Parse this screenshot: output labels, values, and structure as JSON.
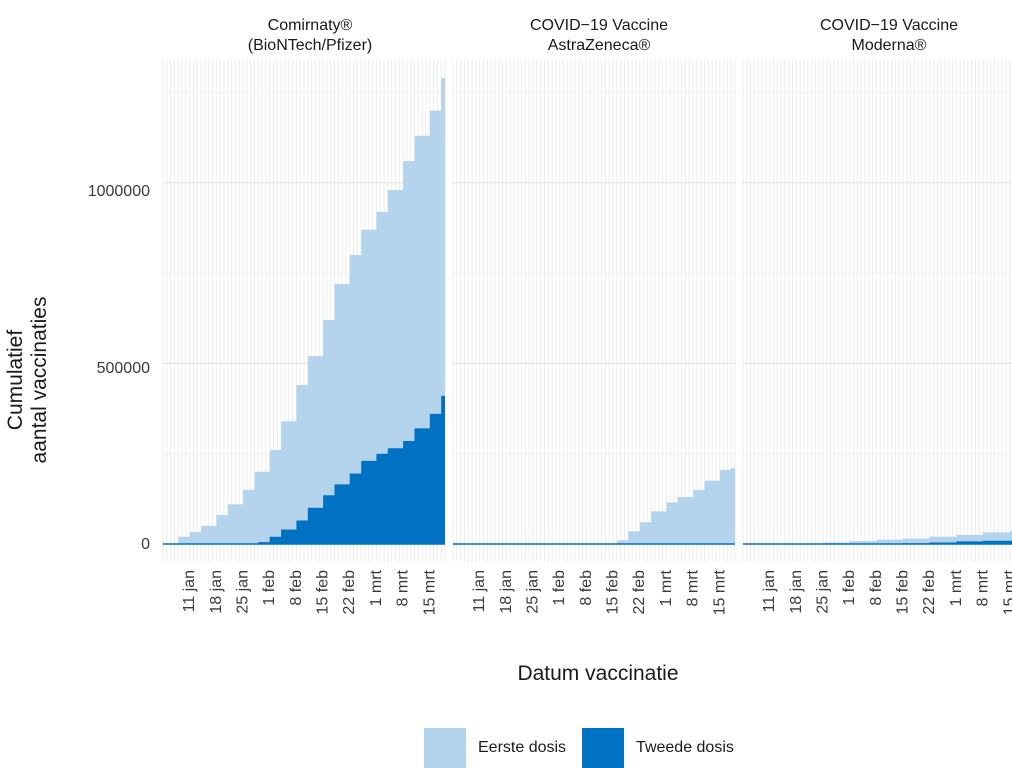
{
  "chart_data": {
    "type": "area",
    "ylabel": "Cumulatief\naantal vaccinaties",
    "xlabel": "Datum vaccinatie",
    "ylim": [
      -50000,
      1340000
    ],
    "yticks": [
      0,
      500000,
      1000000
    ],
    "ytick_labels": [
      "0",
      "500000",
      "1000000"
    ],
    "xlim": [
      "2021-01-04",
      "2021-03-19"
    ],
    "xticks": [
      "2021-01-11",
      "2021-01-18",
      "2021-01-25",
      "2021-02-01",
      "2021-02-08",
      "2021-02-15",
      "2021-02-22",
      "2021-03-01",
      "2021-03-08",
      "2021-03-15"
    ],
    "xtick_labels": [
      "11 jan",
      "18 jan",
      "25 jan",
      "1 feb",
      "8 feb",
      "15 feb",
      "22 feb",
      "1 mrt",
      "8 mrt",
      "15 mrt"
    ],
    "legend_position": "bottom",
    "colors": {
      "eerste": "#b3d4ec",
      "tweede": "#0072c3"
    },
    "legend": [
      {
        "label": "Eerste dosis",
        "color": "#b3d4ec"
      },
      {
        "label": "Tweede dosis",
        "color": "#0072c3"
      }
    ],
    "panels": [
      {
        "title_line1": "Comirnaty®",
        "title_line2": "(BioNTech/Pfizer)",
        "series": [
          {
            "name": "Eerste dosis",
            "points": [
              [
                "2021-01-06",
                0
              ],
              [
                "2021-01-08",
                20000
              ],
              [
                "2021-01-11",
                33000
              ],
              [
                "2021-01-14",
                50000
              ],
              [
                "2021-01-18",
                80000
              ],
              [
                "2021-01-21",
                110000
              ],
              [
                "2021-01-25",
                150000
              ],
              [
                "2021-01-28",
                200000
              ],
              [
                "2021-02-01",
                260000
              ],
              [
                "2021-02-04",
                340000
              ],
              [
                "2021-02-08",
                440000
              ],
              [
                "2021-02-11",
                520000
              ],
              [
                "2021-02-15",
                620000
              ],
              [
                "2021-02-18",
                720000
              ],
              [
                "2021-02-22",
                800000
              ],
              [
                "2021-02-25",
                870000
              ],
              [
                "2021-03-01",
                920000
              ],
              [
                "2021-03-04",
                980000
              ],
              [
                "2021-03-08",
                1060000
              ],
              [
                "2021-03-11",
                1130000
              ],
              [
                "2021-03-15",
                1200000
              ],
              [
                "2021-03-18",
                1290000
              ]
            ]
          },
          {
            "name": "Tweede dosis",
            "points": [
              [
                "2021-01-06",
                0
              ],
              [
                "2021-01-25",
                0
              ],
              [
                "2021-01-29",
                5000
              ],
              [
                "2021-02-01",
                20000
              ],
              [
                "2021-02-04",
                40000
              ],
              [
                "2021-02-08",
                65000
              ],
              [
                "2021-02-11",
                100000
              ],
              [
                "2021-02-15",
                135000
              ],
              [
                "2021-02-18",
                165000
              ],
              [
                "2021-02-22",
                195000
              ],
              [
                "2021-02-25",
                230000
              ],
              [
                "2021-03-01",
                250000
              ],
              [
                "2021-03-04",
                265000
              ],
              [
                "2021-03-08",
                285000
              ],
              [
                "2021-03-11",
                320000
              ],
              [
                "2021-03-15",
                360000
              ],
              [
                "2021-03-18",
                410000
              ]
            ]
          }
        ]
      },
      {
        "title_line1": "COVID−19 Vaccine",
        "title_line2": "AstraZeneca®",
        "series": [
          {
            "name": "Eerste dosis",
            "points": [
              [
                "2021-01-06",
                0
              ],
              [
                "2021-02-13",
                0
              ],
              [
                "2021-02-16",
                10000
              ],
              [
                "2021-02-19",
                35000
              ],
              [
                "2021-02-22",
                60000
              ],
              [
                "2021-02-25",
                90000
              ],
              [
                "2021-03-01",
                115000
              ],
              [
                "2021-03-04",
                130000
              ],
              [
                "2021-03-08",
                150000
              ],
              [
                "2021-03-11",
                175000
              ],
              [
                "2021-03-15",
                205000
              ],
              [
                "2021-03-18",
                210000
              ]
            ]
          },
          {
            "name": "Tweede dosis",
            "points": [
              [
                "2021-01-06",
                0
              ],
              [
                "2021-03-18",
                0
              ]
            ]
          }
        ]
      },
      {
        "title_line1": "COVID−19 Vaccine",
        "title_line2": "Moderna®",
        "series": [
          {
            "name": "Eerste dosis",
            "points": [
              [
                "2021-01-06",
                0
              ],
              [
                "2021-01-14",
                1000
              ],
              [
                "2021-01-25",
                4000
              ],
              [
                "2021-02-01",
                8000
              ],
              [
                "2021-02-08",
                12000
              ],
              [
                "2021-02-15",
                15000
              ],
              [
                "2021-02-22",
                20000
              ],
              [
                "2021-03-01",
                25000
              ],
              [
                "2021-03-08",
                32000
              ],
              [
                "2021-03-15",
                35000
              ],
              [
                "2021-03-18",
                36000
              ]
            ]
          },
          {
            "name": "Tweede dosis",
            "points": [
              [
                "2021-01-06",
                0
              ],
              [
                "2021-02-08",
                0
              ],
              [
                "2021-02-15",
                2000
              ],
              [
                "2021-02-22",
                4000
              ],
              [
                "2021-03-01",
                7000
              ],
              [
                "2021-03-08",
                9000
              ],
              [
                "2021-03-18",
                12000
              ]
            ]
          }
        ]
      }
    ]
  }
}
